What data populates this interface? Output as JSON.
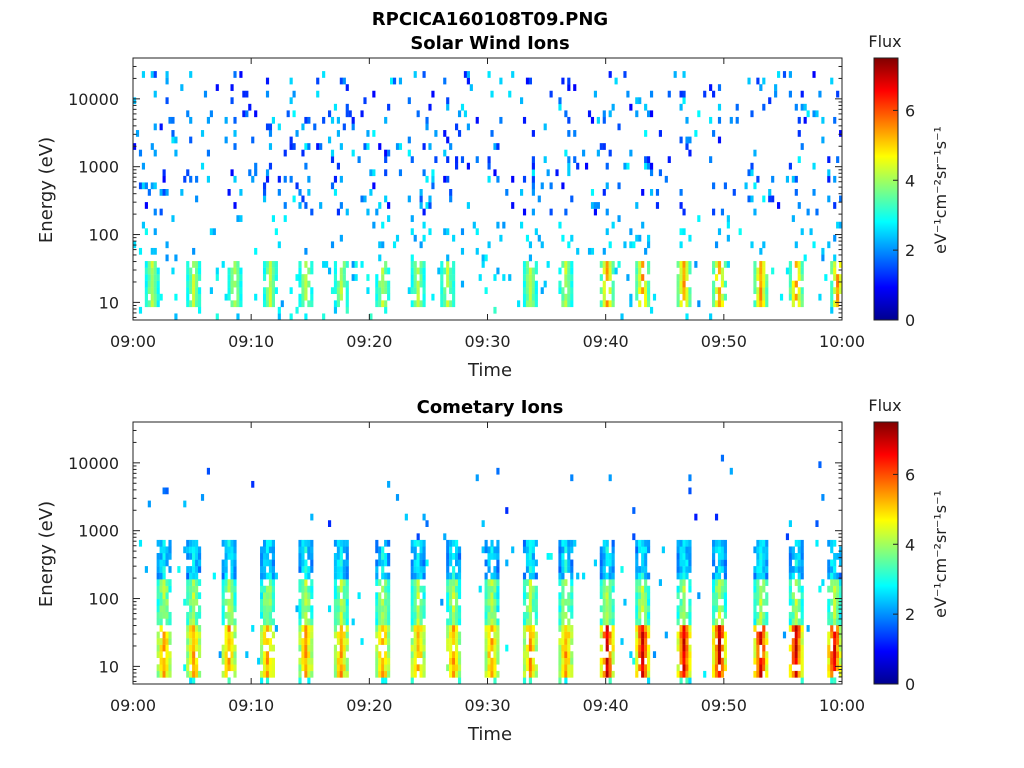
{
  "figure_title": "RPCICA160108T09.PNG",
  "chart_data": [
    {
      "type": "heatmap",
      "title": "Solar Wind Ions",
      "xlabel": "Time",
      "ylabel": "Energy (eV)",
      "x_ticks": [
        "09:00",
        "09:10",
        "09:20",
        "09:30",
        "09:40",
        "09:50",
        "10:00"
      ],
      "x_range_minutes": [
        0,
        60
      ],
      "y_ticks": [
        "10",
        "100",
        "1000",
        "10000"
      ],
      "y_scale": "log",
      "ylim": [
        5.5,
        40000
      ],
      "colorbar": {
        "title": "Flux",
        "label": "eV⁻¹cm⁻²sr⁻¹s⁻¹",
        "ticks": [
          "0",
          "2",
          "4",
          "6"
        ],
        "range": [
          0,
          7.5
        ],
        "colormap": "jet"
      },
      "bursts_minutes": [
        1.5,
        5.0,
        8.5,
        11.5,
        14.5,
        17.5,
        21.0,
        24.0,
        26.5,
        33.5,
        36.5,
        40.0,
        43.0,
        46.5,
        49.5,
        53.0,
        56.0,
        59.5
      ],
      "features": "sparse low-flux (~1–3) counts between ~100 eV and ~20000 eV; moderate flux (2–5) near 15–40 eV in bursts"
    },
    {
      "type": "heatmap",
      "title": "Cometary Ions",
      "xlabel": "Time",
      "ylabel": "Energy (eV)",
      "x_ticks": [
        "09:00",
        "09:10",
        "09:20",
        "09:30",
        "09:40",
        "09:50",
        "10:00"
      ],
      "x_range_minutes": [
        0,
        60
      ],
      "y_ticks": [
        "10",
        "100",
        "1000",
        "10000"
      ],
      "y_scale": "log",
      "ylim": [
        5.5,
        40000
      ],
      "colorbar": {
        "title": "Flux",
        "label": "eV⁻¹cm⁻²sr⁻¹s⁻¹",
        "ticks": [
          "0",
          "2",
          "4",
          "6"
        ],
        "range": [
          0,
          7.5
        ],
        "colormap": "jet"
      },
      "bursts_minutes": [
        2.5,
        5.0,
        8.0,
        11.3,
        14.5,
        17.5,
        21.0,
        24.0,
        27.0,
        30.2,
        33.5,
        36.5,
        40.0,
        43.0,
        46.5,
        49.5,
        53.0,
        56.0,
        59.2
      ],
      "features": "periodic vertical bursts from ~10 eV to ~700 eV; peak flux (~6–7) at 10–30 eV after 09:40; sparse counts up to ~10000 eV"
    }
  ]
}
